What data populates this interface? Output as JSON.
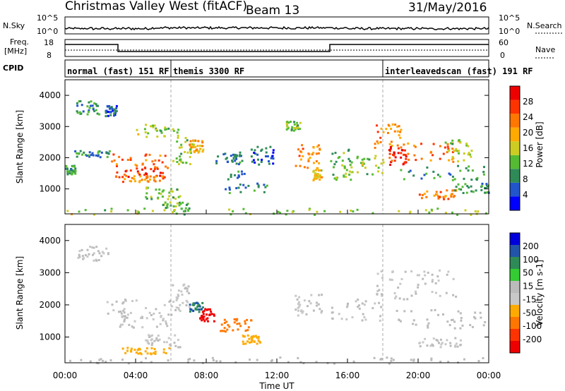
{
  "header": {
    "station": "Christmas Valley West (fitACF)",
    "beam": "Beam 13",
    "date": "31/May/2016"
  },
  "top_panels": {
    "nsky_label": "N.Sky",
    "nsky_ticks": [
      "10^5",
      "10^0"
    ],
    "nsearch_label": "N.Search",
    "nsearch_ticks": [
      "10^5",
      "10^0"
    ],
    "freq_label": [
      "Freq.",
      "[MHz]"
    ],
    "freq_ticks": [
      "18",
      "8"
    ],
    "nave_label": "Nave",
    "nave_ticks": [
      "60",
      "0"
    ],
    "cpid_label": "CPID",
    "modes": [
      {
        "label": "normal (fast) 151 RF",
        "start_h": 0,
        "end_h": 6
      },
      {
        "label": "themis 3300 RF",
        "start_h": 6,
        "end_h": 18
      },
      {
        "label": "interleavedscan (fast) 191 RF",
        "start_h": 18,
        "end_h": 24
      }
    ]
  },
  "colors": {
    "power_scale": [
      "#0000ff",
      "#2255cc",
      "#2e8b57",
      "#55bb33",
      "#cccc22",
      "#ffaa00",
      "#ff7700",
      "#ff3300",
      "#ee0000"
    ],
    "velocity_scale": [
      "#0000dd",
      "#2255aa",
      "#2e8b57",
      "#33cc33",
      "#bbbbbb",
      "#c8c8c8",
      "#ffaa00",
      "#ff7700",
      "#ff3300",
      "#ee0000"
    ]
  },
  "chart_data": [
    {
      "type": "heatmap",
      "name": "power",
      "xlabel": "",
      "ylabel": "Slant Range [km]",
      "xlim": [
        0,
        24
      ],
      "ylim": [
        200,
        4500
      ],
      "yticks": [
        "1000",
        "2000",
        "3000",
        "4000"
      ],
      "colorbar": {
        "label": "Power [dB]",
        "ticks": [
          "4",
          "8",
          "12",
          "16",
          "20",
          "24",
          "28"
        ],
        "range": [
          0,
          32
        ]
      },
      "regions": [
        {
          "x0": 0.6,
          "x1": 2.0,
          "y0": 3400,
          "y1": 3850,
          "v": 10
        },
        {
          "x0": 2.2,
          "x1": 2.9,
          "y0": 3350,
          "y1": 3700,
          "v": 6
        },
        {
          "x0": 0.0,
          "x1": 0.6,
          "y0": 1500,
          "y1": 1800,
          "v": 10
        },
        {
          "x0": 0.5,
          "x1": 2.5,
          "y0": 2000,
          "y1": 2250,
          "v": 8
        },
        {
          "x0": 2.6,
          "x1": 6.2,
          "y0": 1700,
          "y1": 2150,
          "v": 24
        },
        {
          "x0": 2.8,
          "x1": 5.8,
          "y0": 1400,
          "y1": 1700,
          "v": 28
        },
        {
          "x0": 3.2,
          "x1": 5.6,
          "y0": 1250,
          "y1": 1450,
          "v": 22
        },
        {
          "x0": 4.0,
          "x1": 6.5,
          "y0": 2700,
          "y1": 3100,
          "v": 14
        },
        {
          "x0": 6.0,
          "x1": 7.2,
          "y0": 1800,
          "y1": 2700,
          "v": 14
        },
        {
          "x0": 7.0,
          "x1": 7.8,
          "y0": 2200,
          "y1": 2600,
          "v": 20
        },
        {
          "x0": 4.5,
          "x1": 6.5,
          "y0": 700,
          "y1": 1100,
          "v": 14
        },
        {
          "x0": 5.5,
          "x1": 7.0,
          "y0": 300,
          "y1": 600,
          "v": 12
        },
        {
          "x0": 8.5,
          "x1": 10.0,
          "y0": 1800,
          "y1": 2200,
          "v": 8
        },
        {
          "x0": 9.0,
          "x1": 11.5,
          "y0": 900,
          "y1": 1600,
          "v": 8
        },
        {
          "x0": 10.5,
          "x1": 11.8,
          "y0": 1800,
          "y1": 2400,
          "v": 6
        },
        {
          "x0": 12.5,
          "x1": 13.3,
          "y0": 2900,
          "y1": 3200,
          "v": 12
        },
        {
          "x0": 13.0,
          "x1": 14.4,
          "y0": 1700,
          "y1": 2500,
          "v": 22
        },
        {
          "x0": 14.0,
          "x1": 14.5,
          "y0": 1300,
          "y1": 1700,
          "v": 18
        },
        {
          "x0": 15.0,
          "x1": 16.2,
          "y0": 1300,
          "y1": 2300,
          "v": 12
        },
        {
          "x0": 16.0,
          "x1": 18.0,
          "y0": 1500,
          "y1": 2100,
          "v": 14
        },
        {
          "x0": 17.5,
          "x1": 19.0,
          "y0": 2300,
          "y1": 3100,
          "v": 22
        },
        {
          "x0": 18.3,
          "x1": 19.3,
          "y0": 1800,
          "y1": 2400,
          "v": 28
        },
        {
          "x0": 19.0,
          "x1": 22.0,
          "y0": 1900,
          "y1": 2500,
          "v": 24
        },
        {
          "x0": 21.5,
          "x1": 23.0,
          "y0": 1900,
          "y1": 2600,
          "v": 14
        },
        {
          "x0": 18.5,
          "x1": 23.8,
          "y0": 1300,
          "y1": 1800,
          "v": 10
        },
        {
          "x0": 20.0,
          "x1": 22.2,
          "y0": 700,
          "y1": 1000,
          "v": 22
        },
        {
          "x0": 22.0,
          "x1": 24.0,
          "y0": 900,
          "y1": 1200,
          "v": 10
        },
        {
          "x0": 0.0,
          "x1": 24.0,
          "y0": 200,
          "y1": 400,
          "v": 14
        }
      ]
    },
    {
      "type": "heatmap",
      "name": "velocity",
      "xlabel": "Time UT",
      "ylabel": "Slant Range [km]",
      "xlim": [
        0,
        24
      ],
      "ylim": [
        200,
        4500
      ],
      "xticks": [
        "00:00",
        "04:00",
        "08:00",
        "12:00",
        "16:00",
        "20:00",
        "00:00"
      ],
      "yticks": [
        "1000",
        "2000",
        "3000",
        "4000"
      ],
      "colorbar": {
        "label": "Velocity [m s-1]",
        "ticks": [
          "200",
          "100",
          "50",
          "15",
          "-15",
          "-50",
          "-100",
          "-200"
        ],
        "range": [
          -250,
          250
        ]
      },
      "regions": [
        {
          "x0": 0.6,
          "x1": 2.5,
          "y0": 3400,
          "y1": 3850,
          "v": 0
        },
        {
          "x0": 2.2,
          "x1": 6.2,
          "y0": 1700,
          "y1": 2200,
          "v": 0
        },
        {
          "x0": 2.8,
          "x1": 5.8,
          "y0": 1300,
          "y1": 1700,
          "v": 0
        },
        {
          "x0": 6.0,
          "x1": 7.0,
          "y0": 1800,
          "y1": 2700,
          "v": 0
        },
        {
          "x0": 7.0,
          "x1": 7.8,
          "y0": 1800,
          "y1": 2100,
          "v": 150
        },
        {
          "x0": 7.6,
          "x1": 8.4,
          "y0": 1500,
          "y1": 1900,
          "v": -220
        },
        {
          "x0": 8.5,
          "x1": 10.5,
          "y0": 1200,
          "y1": 1600,
          "v": -120
        },
        {
          "x0": 10.0,
          "x1": 11.0,
          "y0": 800,
          "y1": 1100,
          "v": -80
        },
        {
          "x0": 4.5,
          "x1": 6.5,
          "y0": 700,
          "y1": 1100,
          "v": 0
        },
        {
          "x0": 3.0,
          "x1": 6.0,
          "y0": 500,
          "y1": 700,
          "v": -60
        },
        {
          "x0": 13.0,
          "x1": 14.5,
          "y0": 1700,
          "y1": 2400,
          "v": 0
        },
        {
          "x0": 15.0,
          "x1": 18.0,
          "y0": 1500,
          "y1": 2200,
          "v": 0
        },
        {
          "x0": 17.5,
          "x1": 22.5,
          "y0": 2200,
          "y1": 3100,
          "v": 0
        },
        {
          "x0": 18.5,
          "x1": 23.8,
          "y0": 1300,
          "y1": 1900,
          "v": 10
        },
        {
          "x0": 20.0,
          "x1": 22.5,
          "y0": 700,
          "y1": 1000,
          "v": 0
        },
        {
          "x0": 0.0,
          "x1": 24.0,
          "y0": 200,
          "y1": 400,
          "v": 30
        }
      ]
    }
  ]
}
